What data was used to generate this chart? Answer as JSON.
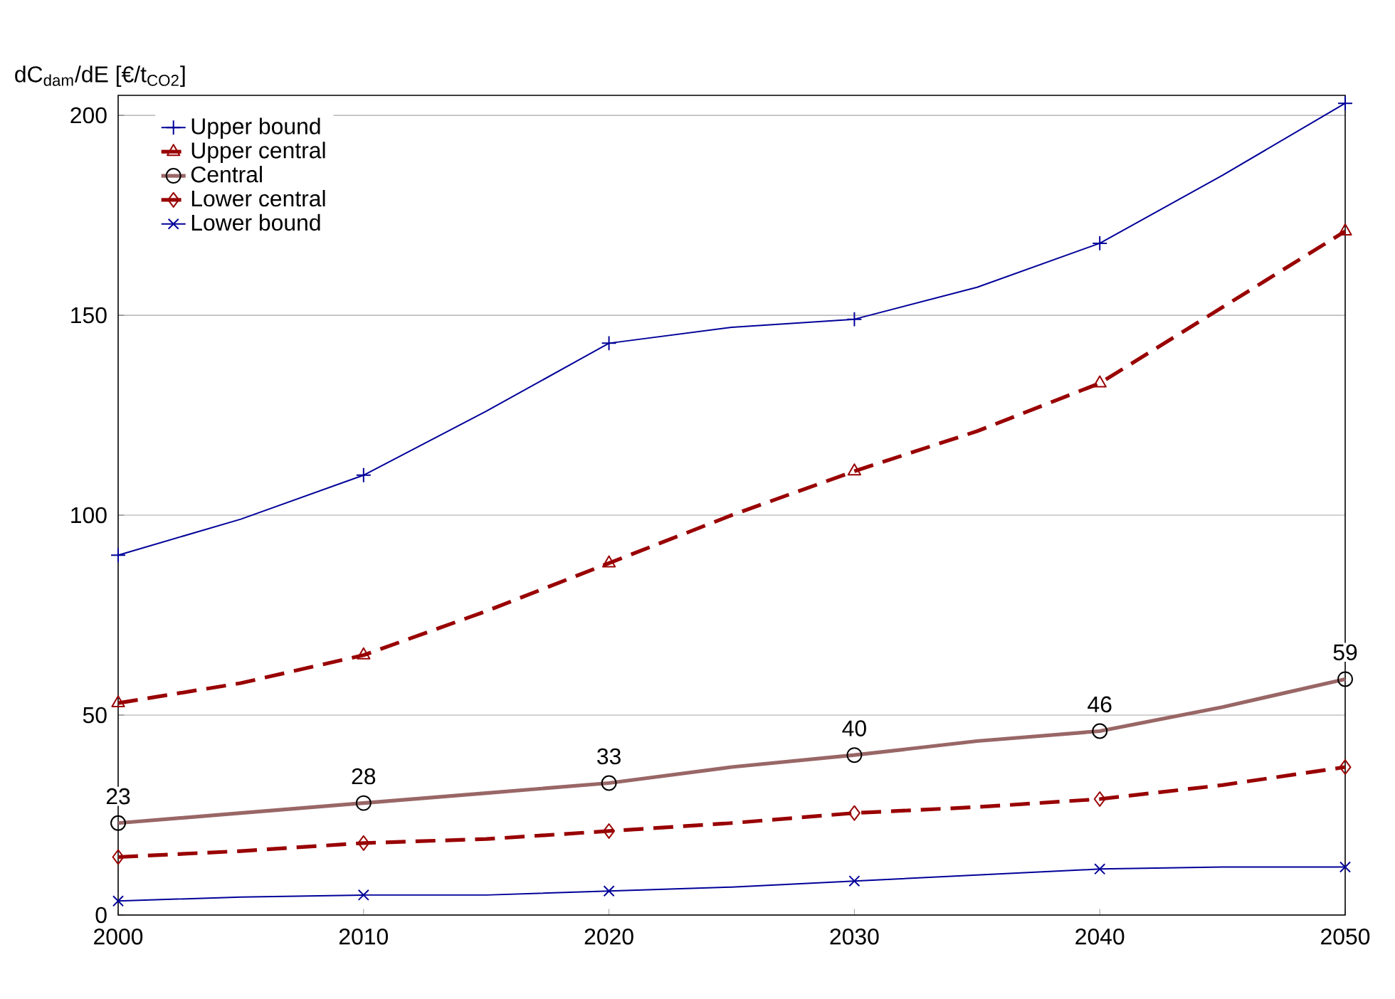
{
  "chart_data": {
    "type": "line",
    "ylabel": "dC$_{dam}$/dE [€/t$_{CO2}$]",
    "x": [
      2000,
      2005,
      2010,
      2015,
      2020,
      2025,
      2030,
      2035,
      2040,
      2045,
      2050
    ],
    "xlim": [
      2000,
      2050
    ],
    "xticks": [
      2000,
      2010,
      2020,
      2030,
      2040,
      2050
    ],
    "ylim": [
      0,
      205
    ],
    "yticks": [
      0,
      50,
      100,
      150,
      200
    ],
    "grid": "y",
    "legend": "top left",
    "series": [
      {
        "name": "Upper bound",
        "color": "#000099",
        "marker": "plus",
        "line_style": "solid",
        "values": [
          90,
          99,
          110,
          126,
          143,
          147,
          149,
          157,
          168,
          185,
          203
        ]
      },
      {
        "name": "Upper central",
        "color": "#990000",
        "marker": "triangle",
        "line_style": "dashed",
        "values": [
          53,
          58,
          65,
          76,
          88,
          100,
          111,
          121,
          133,
          152,
          171
        ]
      },
      {
        "name": "Central",
        "color": "#996666",
        "marker": "circle",
        "line_style": "solid",
        "values": [
          23,
          25.5,
          28,
          30.5,
          33,
          37,
          40,
          43.5,
          46,
          52,
          59
        ],
        "value_labels": [
          "23",
          null,
          "28",
          null,
          "33",
          null,
          "40",
          null,
          "46",
          null,
          "59"
        ]
      },
      {
        "name": "Lower central",
        "color": "#990000",
        "marker": "diamond",
        "line_style": "dashed",
        "values": [
          14.5,
          16,
          18,
          19,
          21,
          23,
          25.5,
          27,
          29,
          32.5,
          37
        ]
      },
      {
        "name": "Lower bound",
        "color": "#000099",
        "marker": "cross",
        "line_style": "solid",
        "values": [
          3.5,
          4.5,
          5,
          5,
          6,
          7,
          8.5,
          10,
          11.5,
          12,
          12
        ]
      }
    ]
  }
}
